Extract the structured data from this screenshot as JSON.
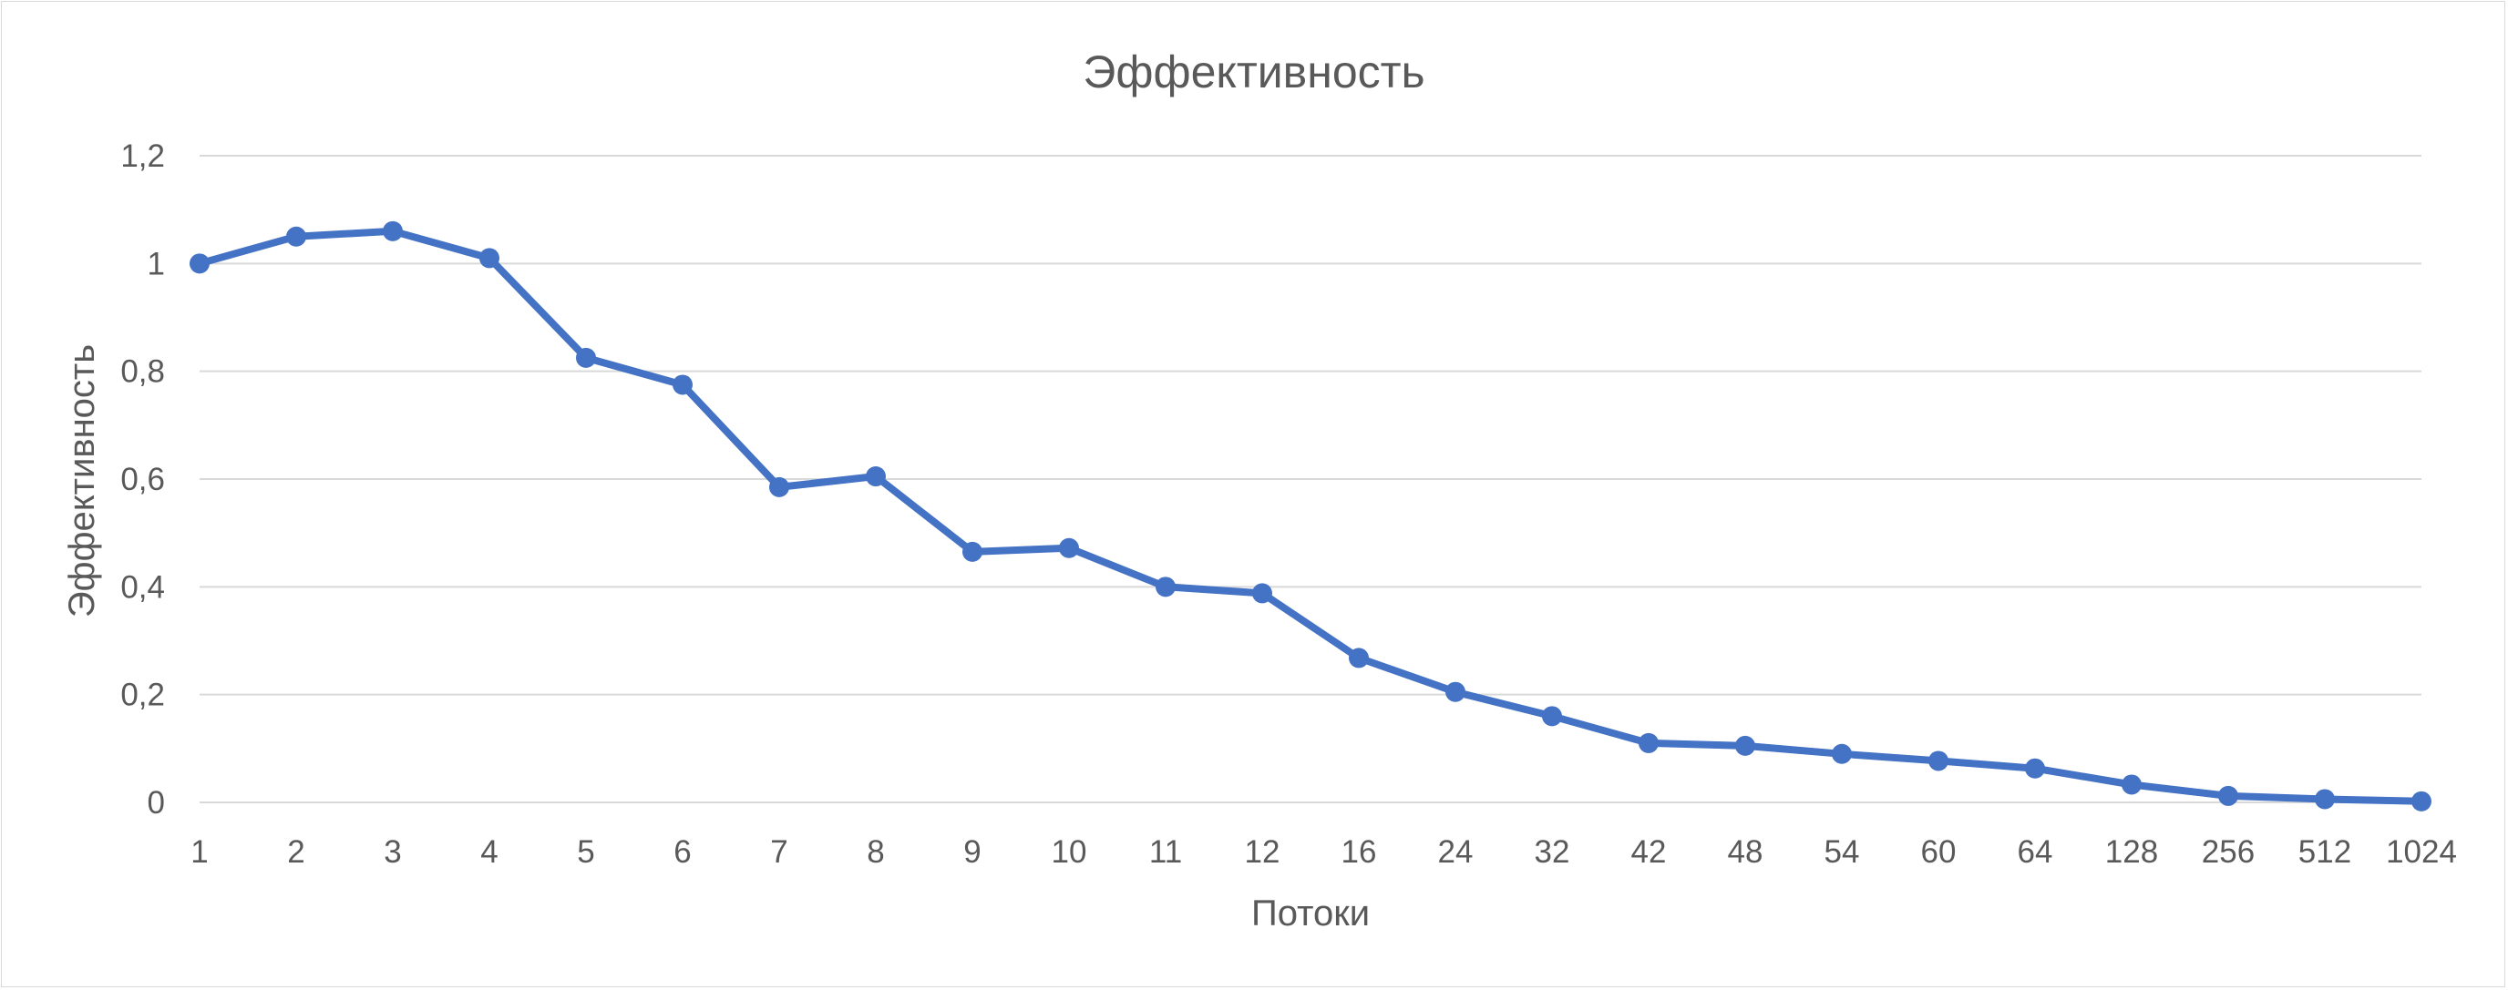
{
  "chart_data": {
    "type": "line",
    "title": "Эффективность",
    "xlabel": "Потоки",
    "ylabel": "Эффективность",
    "categories": [
      "1",
      "2",
      "3",
      "4",
      "5",
      "6",
      "7",
      "8",
      "9",
      "10",
      "11",
      "12",
      "16",
      "24",
      "32",
      "42",
      "48",
      "54",
      "60",
      "64",
      "128",
      "256",
      "512",
      "1024"
    ],
    "y_ticks": [
      "0",
      "0,2",
      "0,4",
      "0,6",
      "0,8",
      "1",
      "1,2"
    ],
    "ylim": [
      0,
      1.2
    ],
    "grid": true,
    "legend": "none",
    "series": [
      {
        "color": "#4472c4",
        "values": [
          1.0,
          1.05,
          1.06,
          1.01,
          0.825,
          0.775,
          0.585,
          0.605,
          0.465,
          0.472,
          0.4,
          0.388,
          0.268,
          0.205,
          0.16,
          0.11,
          0.105,
          0.09,
          0.077,
          0.063,
          0.033,
          0.012,
          0.006,
          0.002
        ]
      }
    ]
  }
}
